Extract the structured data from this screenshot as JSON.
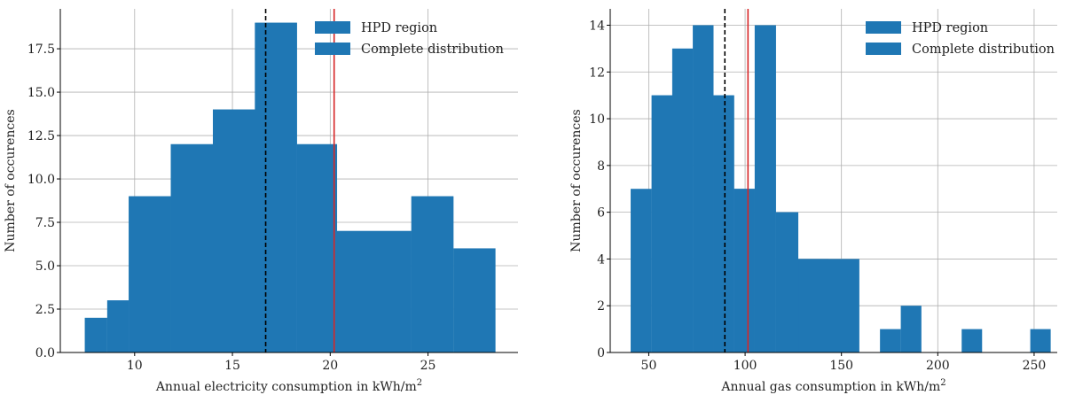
{
  "chart_data": [
    {
      "type": "bar",
      "subtype": "histogram",
      "xlabel": "Annual electricity consumption in kWh/m",
      "xlabel_sup": "2",
      "ylabel": "Number of occurences",
      "xlim": [
        6.2,
        29.6
      ],
      "ylim": [
        0,
        19.8
      ],
      "xticks": [
        10,
        15,
        20,
        25
      ],
      "xtick_labels": [
        "10",
        "15",
        "20",
        "25"
      ],
      "yticks": [
        0,
        2.5,
        5,
        7.5,
        10,
        12.5,
        15,
        17.5
      ],
      "ytick_labels": [
        "0.0",
        "2.5",
        "5.0",
        "7.5",
        "10.0",
        "12.5",
        "15.0",
        "17.5"
      ],
      "grid": true,
      "legend": {
        "placement": "top-right",
        "entries": [
          "HPD region",
          "Complete distribution"
        ]
      },
      "bar_color": "#1f77b4",
      "series": [
        {
          "name": "HPD region",
          "bins": [
            {
              "x0": 8.6,
              "x1": 9.7,
              "count": 3
            },
            {
              "x0": 9.7,
              "x1": 11.85,
              "count": 9
            },
            {
              "x0": 11.85,
              "x1": 14.0,
              "count": 12
            },
            {
              "x0": 14.0,
              "x1": 16.15,
              "count": 14
            },
            {
              "x0": 16.15,
              "x1": 18.3,
              "count": 19
            },
            {
              "x0": 18.3,
              "x1": 20.35,
              "count": 12
            },
            {
              "x0": 20.35,
              "x1": 22.5,
              "count": 7
            },
            {
              "x0": 22.5,
              "x1": 24.15,
              "count": 7
            },
            {
              "x0": 24.15,
              "x1": 26.3,
              "count": 9
            }
          ]
        },
        {
          "name": "Complete distribution",
          "bins": [
            {
              "x0": 7.45,
              "x1": 8.6,
              "count": 2
            },
            {
              "x0": 8.6,
              "x1": 9.7,
              "count": 3
            },
            {
              "x0": 9.7,
              "x1": 11.85,
              "count": 9
            },
            {
              "x0": 11.85,
              "x1": 14.0,
              "count": 12
            },
            {
              "x0": 14.0,
              "x1": 16.15,
              "count": 14
            },
            {
              "x0": 16.15,
              "x1": 18.3,
              "count": 19
            },
            {
              "x0": 18.3,
              "x1": 20.35,
              "count": 12
            },
            {
              "x0": 20.35,
              "x1": 24.15,
              "count": 7
            },
            {
              "x0": 24.15,
              "x1": 26.3,
              "count": 9
            },
            {
              "x0": 26.3,
              "x1": 28.45,
              "count": 6
            }
          ]
        }
      ],
      "vlines": [
        {
          "x": 16.7,
          "color": "#000000",
          "style": "dashed"
        },
        {
          "x": 20.2,
          "color": "#d62728",
          "style": "solid"
        }
      ]
    },
    {
      "type": "bar",
      "subtype": "histogram",
      "xlabel": "Annual gas consumption in kWh/m",
      "xlabel_sup": "2",
      "ylabel": "Number of occurences",
      "xlim": [
        30,
        262
      ],
      "ylim": [
        0,
        14.7
      ],
      "xticks": [
        50,
        100,
        150,
        200,
        250
      ],
      "xtick_labels": [
        "50",
        "100",
        "150",
        "200",
        "250"
      ],
      "yticks": [
        0,
        2,
        4,
        6,
        8,
        10,
        12,
        14
      ],
      "ytick_labels": [
        "0",
        "2",
        "4",
        "6",
        "8",
        "10",
        "12",
        "14"
      ],
      "grid": true,
      "legend": {
        "placement": "top-right",
        "entries": [
          "HPD region",
          "Complete distribution"
        ]
      },
      "bar_color": "#1f77b4",
      "series": [
        {
          "name": "HPD region",
          "bins": [
            {
              "x0": 51.5,
              "x1": 62.2,
              "count": 11
            },
            {
              "x0": 62.2,
              "x1": 72.9,
              "count": 13
            },
            {
              "x0": 72.9,
              "x1": 83.6,
              "count": 14
            },
            {
              "x0": 83.6,
              "x1": 94.3,
              "count": 11
            },
            {
              "x0": 94.3,
              "x1": 105.0,
              "count": 7
            },
            {
              "x0": 105.0,
              "x1": 116.0,
              "count": 14
            },
            {
              "x0": 116.0,
              "x1": 127.6,
              "count": 6
            },
            {
              "x0": 127.6,
              "x1": 143.2,
              "count": 4
            }
          ]
        },
        {
          "name": "Complete distribution",
          "bins": [
            {
              "x0": 40.6,
              "x1": 51.5,
              "count": 7
            },
            {
              "x0": 51.5,
              "x1": 62.2,
              "count": 11
            },
            {
              "x0": 62.2,
              "x1": 72.9,
              "count": 13
            },
            {
              "x0": 72.9,
              "x1": 83.6,
              "count": 14
            },
            {
              "x0": 83.6,
              "x1": 94.3,
              "count": 11
            },
            {
              "x0": 94.3,
              "x1": 105.0,
              "count": 7
            },
            {
              "x0": 105.0,
              "x1": 116.0,
              "count": 14
            },
            {
              "x0": 116.0,
              "x1": 127.6,
              "count": 6
            },
            {
              "x0": 127.6,
              "x1": 159.3,
              "count": 4
            },
            {
              "x0": 170.0,
              "x1": 180.8,
              "count": 1
            },
            {
              "x0": 180.8,
              "x1": 191.5,
              "count": 2
            },
            {
              "x0": 212.4,
              "x1": 223.0,
              "count": 1
            },
            {
              "x0": 248.0,
              "x1": 258.6,
              "count": 1
            }
          ]
        }
      ],
      "vlines": [
        {
          "x": 89.5,
          "color": "#000000",
          "style": "dashed"
        },
        {
          "x": 101.5,
          "color": "#d62728",
          "style": "solid"
        }
      ]
    }
  ]
}
